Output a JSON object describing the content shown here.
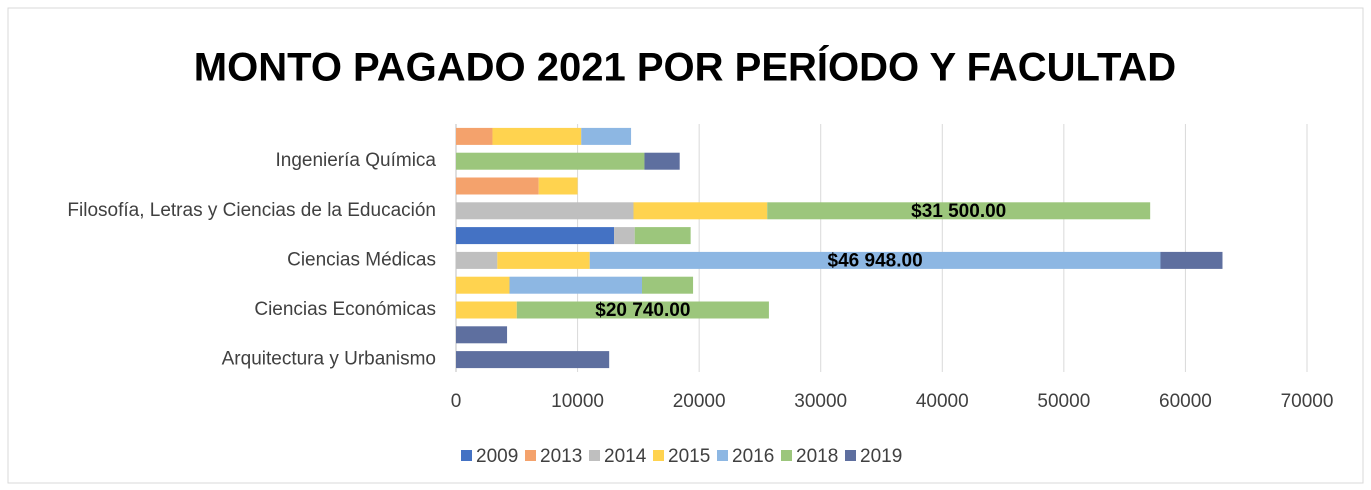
{
  "chart_data": {
    "type": "bar",
    "orientation": "horizontal",
    "stacked": true,
    "title": "MONTO PAGADO 2021 POR PERÍODO Y FACULTAD",
    "categories": [
      null,
      "Ingeniería Química",
      null,
      "Filosofía, Letras y Ciencias de la Educación",
      null,
      "Ciencias Médicas",
      null,
      "Ciencias Económicas",
      null,
      "Arquitectura y Urbanismo"
    ],
    "series": [
      {
        "name": "2009",
        "color": "#4472c4",
        "values": [
          null,
          null,
          null,
          null,
          13000,
          null,
          null,
          null,
          null,
          null
        ]
      },
      {
        "name": "2013",
        "color": "#f4a26c",
        "values": [
          3000,
          null,
          6800,
          null,
          null,
          null,
          null,
          null,
          null,
          null
        ]
      },
      {
        "name": "2014",
        "color": "#bfbfbf",
        "values": [
          null,
          null,
          null,
          14600,
          1700,
          3400,
          null,
          null,
          null,
          null
        ]
      },
      {
        "name": "2015",
        "color": "#ffd34f",
        "values": [
          7300,
          null,
          3200,
          11000,
          null,
          7600,
          4400,
          5000,
          null,
          null
        ]
      },
      {
        "name": "2016",
        "color": "#8db7e3",
        "values": [
          4100,
          null,
          null,
          null,
          null,
          46948,
          10900,
          null,
          null,
          null
        ],
        "value_labels": [
          null,
          null,
          null,
          null,
          null,
          "$46 948.00",
          null,
          null,
          null,
          null
        ]
      },
      {
        "name": "2018",
        "color": "#9cc67c",
        "values": [
          null,
          15500,
          null,
          31500,
          4600,
          null,
          4200,
          20740,
          null,
          null
        ],
        "value_labels": [
          null,
          null,
          null,
          "$31 500.00",
          null,
          null,
          null,
          "$20 740.00",
          null,
          null
        ]
      },
      {
        "name": "2019",
        "color": "#5e6f9f",
        "values": [
          null,
          2900,
          null,
          null,
          null,
          5100,
          null,
          null,
          4200,
          12600
        ]
      }
    ],
    "xlim": [
      0,
      70000
    ],
    "xticks": [
      0,
      10000,
      20000,
      30000,
      40000,
      50000,
      60000,
      70000
    ],
    "grid": true,
    "legend": "bottom"
  }
}
